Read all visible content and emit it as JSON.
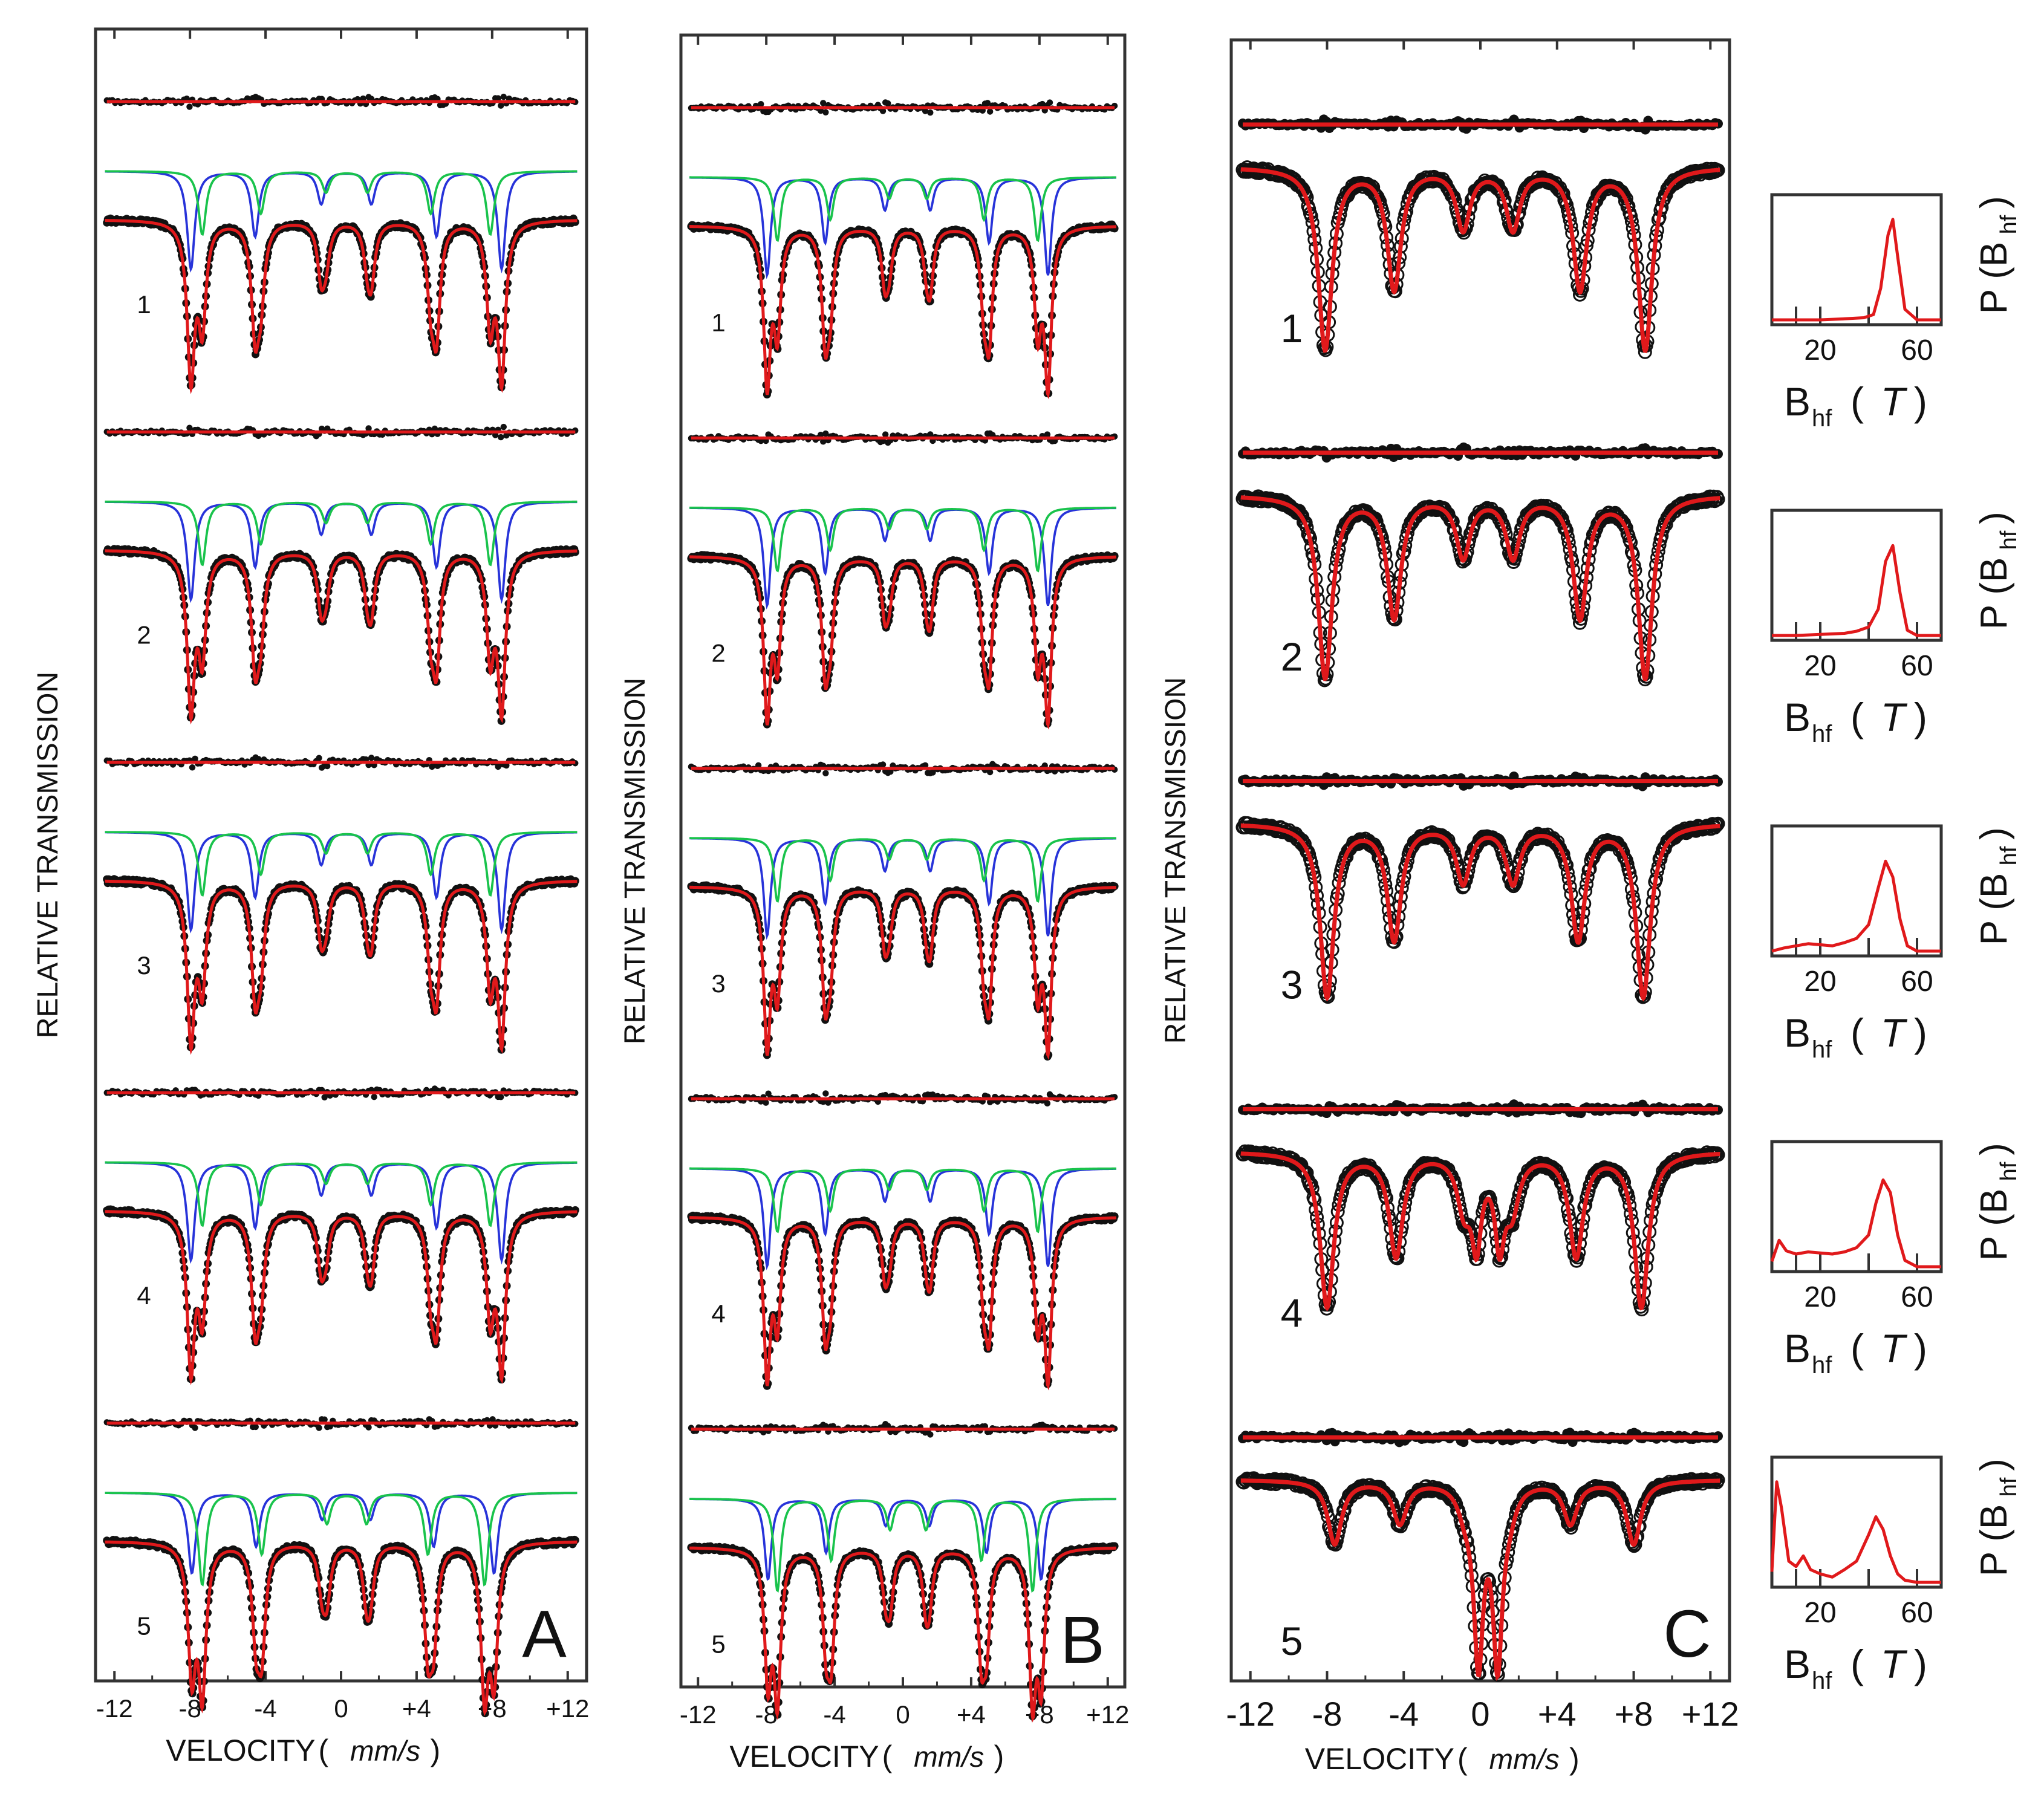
{
  "chart_data": [
    {
      "panel": "A",
      "type": "line",
      "xlabel": "VELOCITY",
      "xunit": "mm/s",
      "ylabel": "RELATIVE TRANSMISSION",
      "xlim": [
        -13,
        13
      ],
      "x_ticks": [
        "-12",
        "-8",
        "-4",
        "0",
        "+4",
        "+8",
        "+12"
      ],
      "x_tick_values": [
        -12,
        -8,
        -4,
        0,
        4,
        8,
        12
      ],
      "series_colors": {
        "data": "#111111",
        "fit": "#e0191b",
        "sextet_1": "#2733d9",
        "sextet_2": "#19c34c"
      },
      "spectra": [
        {
          "label": "1",
          "sextets": [
            {
              "lines": [
                -7.95,
                -4.55,
                -1.05,
                1.6,
                5.05,
                8.5
              ],
              "depth": 0.85
            },
            {
              "lines": [
                -7.35,
                -4.25,
                -0.8,
                1.4,
                4.75,
                7.9
              ],
              "depth": 0.55
            }
          ]
        },
        {
          "label": "2",
          "sextets": [
            {
              "lines": [
                -7.95,
                -4.55,
                -1.05,
                1.6,
                5.05,
                8.5
              ],
              "depth": 0.85
            },
            {
              "lines": [
                -7.35,
                -4.25,
                -0.8,
                1.4,
                4.75,
                7.9
              ],
              "depth": 0.55
            }
          ]
        },
        {
          "label": "3",
          "sextets": [
            {
              "lines": [
                -7.95,
                -4.55,
                -1.05,
                1.6,
                5.05,
                8.5
              ],
              "depth": 0.85
            },
            {
              "lines": [
                -7.35,
                -4.25,
                -0.8,
                1.4,
                4.75,
                7.9
              ],
              "depth": 0.55
            }
          ]
        },
        {
          "label": "4",
          "sextets": [
            {
              "lines": [
                -7.95,
                -4.55,
                -1.05,
                1.6,
                5.05,
                8.5
              ],
              "depth": 0.85
            },
            {
              "lines": [
                -7.35,
                -4.25,
                -0.8,
                1.4,
                4.75,
                7.9
              ],
              "depth": 0.55
            }
          ]
        },
        {
          "label": "5",
          "sextets": [
            {
              "lines": [
                -7.9,
                -4.5,
                -1.0,
                1.55,
                4.9,
                8.1
              ],
              "depth": 0.7
            },
            {
              "lines": [
                -7.35,
                -4.2,
                -0.75,
                1.35,
                4.6,
                7.6
              ],
              "depth": 0.8
            }
          ]
        }
      ]
    },
    {
      "panel": "B",
      "type": "line",
      "xlabel": "VELOCITY",
      "xunit": "mm/s",
      "ylabel": "RELATIVE TRANSMISSION",
      "xlim": [
        -13,
        13
      ],
      "x_ticks": [
        "-12",
        "-8",
        "-4",
        "0",
        "+4",
        "+8",
        "+12"
      ],
      "x_tick_values": [
        -12,
        -8,
        -4,
        0,
        4,
        8,
        12
      ],
      "spectra": [
        {
          "label": "1",
          "sextets": [
            {
              "lines": [
                -7.95,
                -4.55,
                -1.05,
                1.6,
                5.05,
                8.5
              ],
              "depth": 0.85
            },
            {
              "lines": [
                -7.35,
                -4.25,
                -0.8,
                1.4,
                4.75,
                7.9
              ],
              "depth": 0.55
            }
          ]
        },
        {
          "label": "2",
          "sextets": [
            {
              "lines": [
                -7.95,
                -4.55,
                -1.05,
                1.6,
                5.05,
                8.5
              ],
              "depth": 0.85
            },
            {
              "lines": [
                -7.35,
                -4.25,
                -0.8,
                1.4,
                4.75,
                7.9
              ],
              "depth": 0.55
            }
          ]
        },
        {
          "label": "3",
          "sextets": [
            {
              "lines": [
                -7.95,
                -4.55,
                -1.05,
                1.6,
                5.05,
                8.5
              ],
              "depth": 0.85
            },
            {
              "lines": [
                -7.35,
                -4.25,
                -0.8,
                1.4,
                4.75,
                7.9
              ],
              "depth": 0.55
            }
          ]
        },
        {
          "label": "4",
          "sextets": [
            {
              "lines": [
                -7.95,
                -4.55,
                -1.05,
                1.6,
                5.05,
                8.5
              ],
              "depth": 0.85
            },
            {
              "lines": [
                -7.35,
                -4.25,
                -0.8,
                1.4,
                4.75,
                7.9
              ],
              "depth": 0.55
            }
          ]
        },
        {
          "label": "5",
          "sextets": [
            {
              "lines": [
                -7.9,
                -4.5,
                -1.0,
                1.55,
                4.9,
                8.1
              ],
              "depth": 0.7
            },
            {
              "lines": [
                -7.35,
                -4.2,
                -0.75,
                1.35,
                4.6,
                7.6
              ],
              "depth": 0.8
            }
          ]
        }
      ]
    },
    {
      "panel": "C",
      "type": "line",
      "xlabel": "VELOCITY",
      "xunit": "mm/s",
      "ylabel": "RELATIVE TRANSMISSION",
      "xlim": [
        -13,
        13
      ],
      "x_ticks": [
        "-12",
        "-8",
        "-4",
        "0",
        "+4",
        "+8",
        "+12"
      ],
      "x_tick_values": [
        -12,
        -8,
        -4,
        0,
        4,
        8,
        12
      ],
      "spectra": [
        {
          "label": "1",
          "sextets": [
            {
              "lines": [
                -8.1,
                -4.5,
                -0.9,
                1.7,
                5.2,
                8.6
              ],
              "depth": 1.0
            }
          ]
        },
        {
          "label": "2",
          "sextets": [
            {
              "lines": [
                -8.1,
                -4.5,
                -0.9,
                1.7,
                5.2,
                8.6
              ],
              "depth": 1.0
            }
          ]
        },
        {
          "label": "3",
          "sextets": [
            {
              "lines": [
                -8.0,
                -4.5,
                -0.9,
                1.7,
                5.1,
                8.5
              ],
              "depth": 0.95
            }
          ]
        },
        {
          "label": "4",
          "sextets": [
            {
              "lines": [
                -8.0,
                -4.4,
                -0.85,
                1.65,
                5.0,
                8.4
              ],
              "depth": 0.85
            }
          ],
          "doublet": {
            "lines": [
              -0.2,
              1.0
            ],
            "depth": 0.45
          }
        },
        {
          "label": "5",
          "sextets": [
            {
              "lines": [
                -7.6,
                -4.2,
                -0.8,
                1.5,
                4.7,
                8.0
              ],
              "depth": 0.35
            }
          ],
          "doublet": {
            "lines": [
              -0.1,
              0.9
            ],
            "depth": 0.95
          }
        }
      ]
    },
    {
      "panel": "distribution",
      "type": "line",
      "xlabel": "B",
      "xlabel_sub": "hf",
      "xunit": "T",
      "ylabel_prefix": "P (B",
      "ylabel_sub": "hf",
      "ylabel_suffix": ")",
      "x_ticks": [
        "20",
        "60"
      ],
      "x_tick_values": [
        20,
        60
      ],
      "xlim": [
        0,
        70
      ],
      "distributions": [
        {
          "label": "1",
          "x": [
            0,
            10,
            20,
            30,
            38,
            42,
            45,
            48,
            50,
            52,
            55,
            60,
            70
          ],
          "y": [
            0.0,
            0.0,
            0.0,
            0.01,
            0.02,
            0.05,
            0.3,
            0.8,
            0.95,
            0.6,
            0.1,
            0.0,
            0.0
          ]
        },
        {
          "label": "2",
          "x": [
            0,
            10,
            20,
            30,
            35,
            40,
            44,
            47,
            50,
            53,
            56,
            60,
            70
          ],
          "y": [
            0.0,
            0.0,
            0.01,
            0.02,
            0.04,
            0.08,
            0.25,
            0.7,
            0.85,
            0.4,
            0.05,
            0.0,
            0.0
          ]
        },
        {
          "label": "3",
          "x": [
            0,
            5,
            10,
            15,
            20,
            25,
            30,
            35,
            40,
            44,
            47,
            50,
            53,
            56,
            60,
            70
          ],
          "y": [
            0.0,
            0.03,
            0.05,
            0.07,
            0.06,
            0.05,
            0.08,
            0.12,
            0.25,
            0.6,
            0.85,
            0.7,
            0.3,
            0.05,
            0.0,
            0.0
          ]
        },
        {
          "label": "4",
          "x": [
            0,
            3,
            6,
            10,
            15,
            20,
            25,
            30,
            35,
            40,
            43,
            46,
            49,
            52,
            55,
            60,
            70
          ],
          "y": [
            0.05,
            0.25,
            0.15,
            0.12,
            0.14,
            0.13,
            0.12,
            0.14,
            0.18,
            0.3,
            0.6,
            0.82,
            0.7,
            0.3,
            0.06,
            0.0,
            0.0
          ]
        },
        {
          "label": "5",
          "x": [
            0,
            2,
            4,
            7,
            10,
            13,
            16,
            20,
            25,
            30,
            35,
            40,
            43,
            46,
            49,
            52,
            55,
            60,
            70
          ],
          "y": [
            0.1,
            0.95,
            0.7,
            0.2,
            0.15,
            0.25,
            0.12,
            0.08,
            0.05,
            0.12,
            0.2,
            0.45,
            0.62,
            0.5,
            0.25,
            0.08,
            0.02,
            0.0,
            0.0
          ]
        }
      ]
    }
  ],
  "panel_letters": [
    "A",
    "B",
    "C"
  ]
}
